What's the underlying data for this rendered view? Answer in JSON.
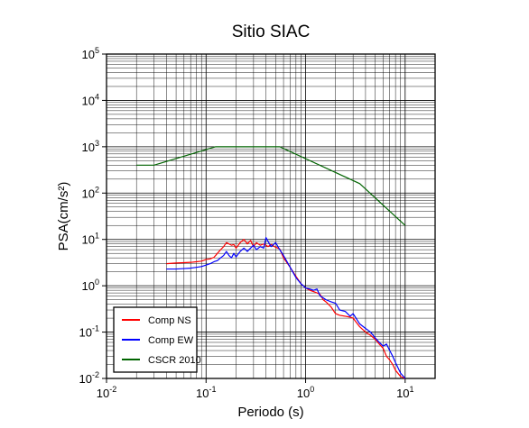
{
  "chart_data": {
    "type": "line",
    "title": "Sitio SIAC",
    "xlabel": "Periodo (s)",
    "ylabel": "PSA(cm/s²)",
    "x_scale": "log",
    "y_scale": "log",
    "xlim": [
      0.01,
      20
    ],
    "ylim": [
      0.01,
      100000
    ],
    "grid": true,
    "legend_position": "bottom-left",
    "x_ticks": [
      {
        "base": "10",
        "exp": "-2"
      },
      {
        "base": "10",
        "exp": "-1"
      },
      {
        "base": "10",
        "exp": "0"
      },
      {
        "base": "10",
        "exp": "1"
      }
    ],
    "y_ticks": [
      {
        "base": "10",
        "exp": "-2"
      },
      {
        "base": "10",
        "exp": "-1"
      },
      {
        "base": "10",
        "exp": "0"
      },
      {
        "base": "10",
        "exp": "1"
      },
      {
        "base": "10",
        "exp": "2"
      },
      {
        "base": "10",
        "exp": "3"
      },
      {
        "base": "10",
        "exp": "4"
      },
      {
        "base": "10",
        "exp": "5"
      }
    ],
    "series": [
      {
        "name": "Comp NS",
        "color": "#ff0000",
        "points": [
          [
            0.04,
            3.0
          ],
          [
            0.05,
            3.1
          ],
          [
            0.06,
            3.15
          ],
          [
            0.07,
            3.2
          ],
          [
            0.08,
            3.3
          ],
          [
            0.09,
            3.4
          ],
          [
            0.1,
            3.7
          ],
          [
            0.11,
            3.8
          ],
          [
            0.12,
            4.1
          ],
          [
            0.13,
            5.0
          ],
          [
            0.14,
            6.0
          ],
          [
            0.15,
            7.0
          ],
          [
            0.16,
            8.5
          ],
          [
            0.17,
            8.0
          ],
          [
            0.18,
            7.5
          ],
          [
            0.19,
            7.8
          ],
          [
            0.2,
            6.5
          ],
          [
            0.22,
            8.5
          ],
          [
            0.24,
            10.0
          ],
          [
            0.26,
            8.0
          ],
          [
            0.28,
            9.5
          ],
          [
            0.3,
            7.0
          ],
          [
            0.32,
            8.5
          ],
          [
            0.35,
            7.5
          ],
          [
            0.38,
            8.0
          ],
          [
            0.42,
            7.0
          ],
          [
            0.45,
            7.8
          ],
          [
            0.5,
            6.8
          ],
          [
            0.55,
            6.2
          ],
          [
            0.6,
            4.0
          ],
          [
            0.7,
            2.5
          ],
          [
            0.8,
            1.6
          ],
          [
            0.9,
            1.1
          ],
          [
            1.0,
            0.9
          ],
          [
            1.1,
            0.8
          ],
          [
            1.2,
            0.75
          ],
          [
            1.3,
            0.7
          ],
          [
            1.4,
            0.65
          ],
          [
            1.5,
            0.5
          ],
          [
            1.6,
            0.45
          ],
          [
            1.8,
            0.35
          ],
          [
            2.0,
            0.25
          ],
          [
            2.2,
            0.23
          ],
          [
            2.5,
            0.22
          ],
          [
            2.8,
            0.21
          ],
          [
            3.0,
            0.2
          ],
          [
            3.5,
            0.13
          ],
          [
            4.0,
            0.1
          ],
          [
            4.5,
            0.085
          ],
          [
            5.0,
            0.07
          ],
          [
            5.5,
            0.055
          ],
          [
            6.0,
            0.045
          ],
          [
            6.5,
            0.03
          ],
          [
            7.0,
            0.025
          ],
          [
            7.5,
            0.02
          ],
          [
            8.0,
            0.015
          ],
          [
            9.0,
            0.011
          ],
          [
            10.0,
            0.01
          ]
        ]
      },
      {
        "name": "Comp EW",
        "color": "#0000ff",
        "points": [
          [
            0.04,
            2.3
          ],
          [
            0.05,
            2.3
          ],
          [
            0.06,
            2.35
          ],
          [
            0.07,
            2.4
          ],
          [
            0.08,
            2.5
          ],
          [
            0.09,
            2.6
          ],
          [
            0.1,
            2.8
          ],
          [
            0.11,
            3.0
          ],
          [
            0.12,
            3.3
          ],
          [
            0.13,
            3.5
          ],
          [
            0.14,
            4.0
          ],
          [
            0.15,
            4.5
          ],
          [
            0.16,
            5.5
          ],
          [
            0.17,
            4.5
          ],
          [
            0.18,
            4.0
          ],
          [
            0.19,
            5.0
          ],
          [
            0.2,
            4.2
          ],
          [
            0.22,
            5.5
          ],
          [
            0.24,
            6.5
          ],
          [
            0.26,
            5.5
          ],
          [
            0.28,
            6.5
          ],
          [
            0.3,
            7.5
          ],
          [
            0.32,
            6.0
          ],
          [
            0.35,
            7.0
          ],
          [
            0.38,
            6.5
          ],
          [
            0.4,
            11.0
          ],
          [
            0.42,
            9.0
          ],
          [
            0.45,
            7.0
          ],
          [
            0.5,
            8.5
          ],
          [
            0.55,
            6.0
          ],
          [
            0.6,
            4.5
          ],
          [
            0.7,
            2.5
          ],
          [
            0.8,
            1.5
          ],
          [
            0.9,
            1.1
          ],
          [
            1.0,
            0.9
          ],
          [
            1.1,
            0.85
          ],
          [
            1.2,
            0.8
          ],
          [
            1.3,
            0.85
          ],
          [
            1.4,
            0.6
          ],
          [
            1.5,
            0.55
          ],
          [
            1.6,
            0.5
          ],
          [
            1.8,
            0.45
          ],
          [
            2.0,
            0.42
          ],
          [
            2.2,
            0.3
          ],
          [
            2.5,
            0.28
          ],
          [
            2.8,
            0.22
          ],
          [
            3.0,
            0.25
          ],
          [
            3.5,
            0.15
          ],
          [
            4.0,
            0.12
          ],
          [
            4.5,
            0.1
          ],
          [
            5.0,
            0.075
          ],
          [
            5.5,
            0.06
          ],
          [
            6.0,
            0.05
          ],
          [
            6.5,
            0.055
          ],
          [
            7.0,
            0.04
          ],
          [
            7.5,
            0.03
          ],
          [
            8.0,
            0.022
          ],
          [
            9.0,
            0.013
          ],
          [
            10.0,
            0.01
          ]
        ]
      },
      {
        "name": "CSCR 2010",
        "color": "#006400",
        "points": [
          [
            0.02,
            400
          ],
          [
            0.03,
            400
          ],
          [
            0.125,
            1000
          ],
          [
            0.55,
            1000
          ],
          [
            3.5,
            160
          ],
          [
            10.0,
            20
          ]
        ]
      }
    ]
  }
}
